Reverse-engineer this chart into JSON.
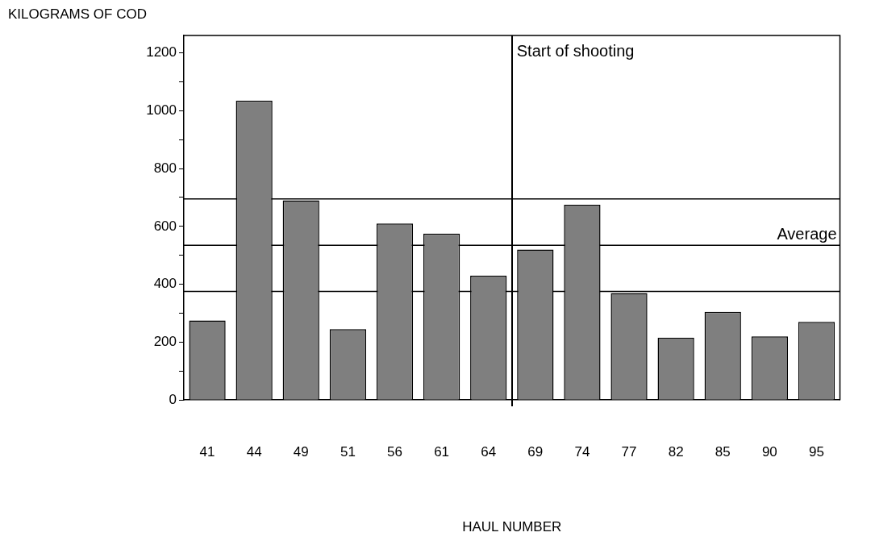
{
  "chart_data": {
    "type": "bar",
    "xlabel": "HAUL NUMBER",
    "ylabel": "KILOGRAMS OF COD",
    "categories": [
      "41",
      "44",
      "49",
      "51",
      "56",
      "61",
      "64",
      "69",
      "74",
      "77",
      "82",
      "85",
      "90",
      "95"
    ],
    "values": [
      275,
      1035,
      690,
      245,
      610,
      575,
      430,
      520,
      675,
      370,
      215,
      305,
      220,
      270
    ],
    "color": "#7f7f7f",
    "ylim": [
      0,
      1260
    ],
    "yticks": [
      0,
      {
        "value": 100,
        "label": null
      },
      200,
      {
        "value": 300,
        "label": null
      },
      400,
      {
        "value": 500,
        "label": null
      },
      600,
      {
        "value": 700,
        "label": null
      },
      800,
      {
        "value": 900,
        "label": null
      },
      1000,
      {
        "value": 1100,
        "label": null
      },
      1200
    ],
    "ref_lines": [
      {
        "axis": "y",
        "value": 695
      },
      {
        "axis": "y",
        "value": 535,
        "label": "Average"
      },
      {
        "axis": "y",
        "value": 375
      }
    ],
    "annotations": [
      "Start of shooting"
    ],
    "grid": false,
    "legend": false
  }
}
